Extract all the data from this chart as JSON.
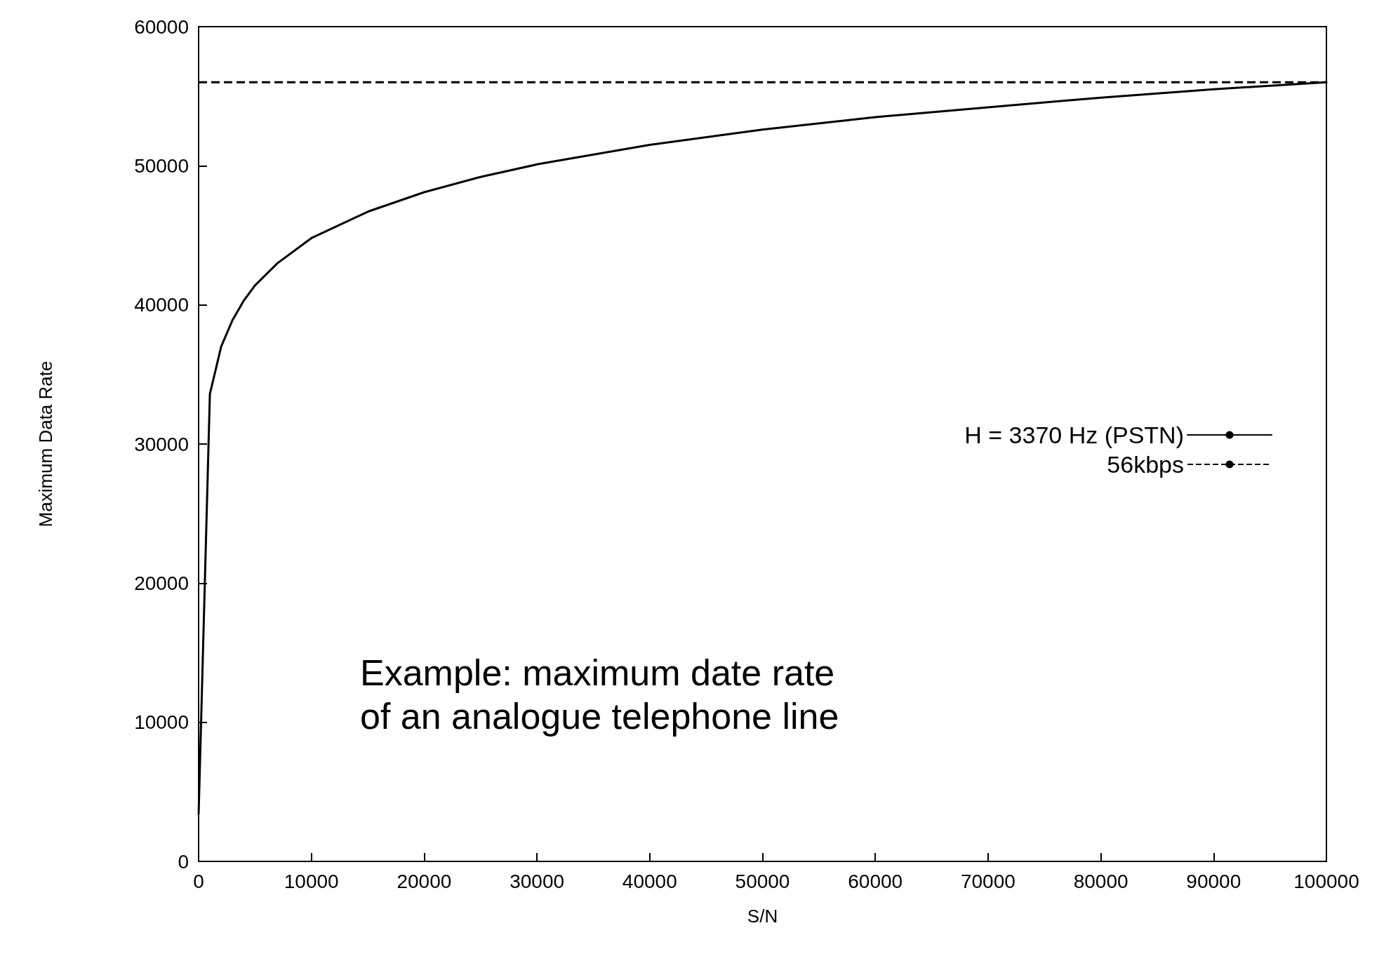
{
  "chart_data": {
    "type": "line",
    "xlabel": "S/N",
    "ylabel": "Maximum Data Rate",
    "annotations": [
      "Example: maximum date rate\nof an analogue telephone line"
    ],
    "series": [
      {
        "name": "H = 3370 Hz (PSTN)",
        "color": "#000000",
        "x": [
          1,
          1000,
          2000,
          3000,
          4000,
          5000,
          7000,
          10000,
          15000,
          20000,
          25000,
          30000,
          40000,
          50000,
          60000,
          70000,
          80000,
          90000,
          100000
        ],
        "values": [
          3400,
          33600,
          37000,
          38900,
          40300,
          41400,
          43000,
          44800,
          46700,
          48100,
          49200,
          50100,
          51500,
          52600,
          53500,
          54200,
          54900,
          55500,
          56000
        ]
      }
    ],
    "ref_lines": [
      {
        "axis": "y",
        "value": 56000,
        "label": "56kbps",
        "color": "#000000",
        "line_style": "dashed"
      }
    ],
    "xlim": [
      0,
      100000
    ],
    "xticks": [
      0,
      10000,
      20000,
      30000,
      40000,
      50000,
      60000,
      70000,
      80000,
      90000,
      100000
    ],
    "ylim": [
      0,
      60000
    ],
    "yticks": [
      0,
      10000,
      20000,
      30000,
      40000,
      50000,
      60000
    ],
    "grid": false,
    "legend": "right",
    "marker": "none",
    "line_style": "solid"
  }
}
